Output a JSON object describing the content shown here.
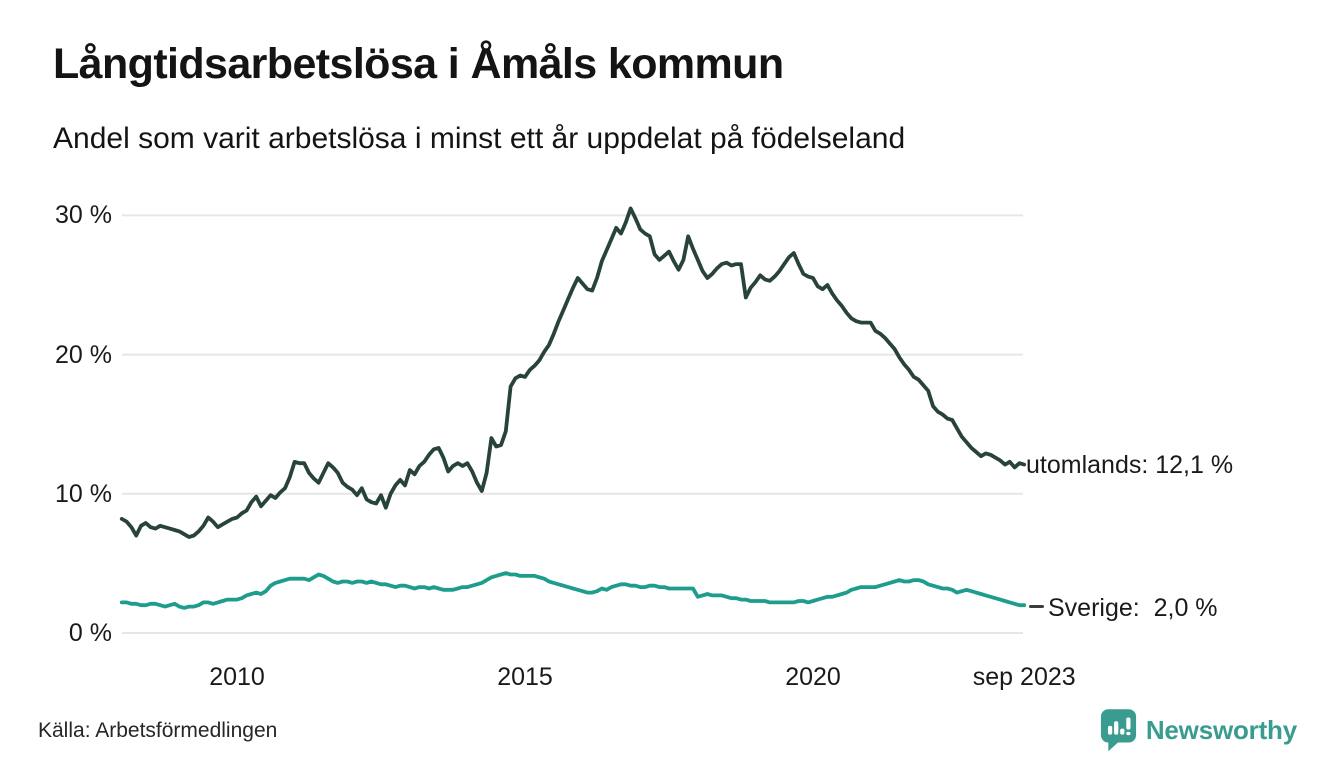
{
  "header": {
    "title": "Långtidsarbetslösa i Åmåls kommun",
    "subtitle": "Andel som varit arbetslösa i minst ett år uppdelat på födelseland"
  },
  "chart_data": {
    "type": "line",
    "title": "Långtidsarbetslösa i Åmåls kommun",
    "subtitle": "Andel som varit arbetslösa i minst ett år uppdelat på födelseland",
    "unit": "%",
    "x_start": "2008-01",
    "x_end": "2023-09",
    "x_interval": "monthly",
    "grid": "horizontal-only",
    "legend_position": "end-of-line-labels",
    "ylim": [
      0,
      31.5
    ],
    "y_axis": {
      "ticks": [
        {
          "value": 0,
          "label": "0 %"
        },
        {
          "value": 10,
          "label": "10 %"
        },
        {
          "value": 20,
          "label": "20 %"
        },
        {
          "value": 30,
          "label": "30 %"
        }
      ]
    },
    "x_axis": {
      "ticks": [
        {
          "pos": 2010,
          "label": "2010"
        },
        {
          "pos": 2015,
          "label": "2015"
        },
        {
          "pos": 2020,
          "label": "2020"
        },
        {
          "pos": 2023.667,
          "label": "sep 2023"
        }
      ]
    },
    "series": [
      {
        "name": "utomlands",
        "color": "#28433b",
        "end_label": "utomlands: 12,1 %",
        "end_value": "12,1 %",
        "values": [
          8.2,
          8.0,
          7.6,
          7.0,
          7.7,
          7.9,
          7.6,
          7.5,
          7.7,
          7.6,
          7.5,
          7.4,
          7.3,
          7.1,
          6.9,
          7.0,
          7.3,
          7.7,
          8.3,
          8.0,
          7.6,
          7.8,
          8.0,
          8.2,
          8.3,
          8.6,
          8.8,
          9.4,
          9.8,
          9.1,
          9.5,
          9.9,
          9.7,
          10.1,
          10.4,
          11.2,
          12.3,
          12.2,
          12.2,
          11.5,
          11.1,
          10.8,
          11.5,
          12.2,
          11.9,
          11.5,
          10.8,
          10.5,
          10.3,
          9.9,
          10.4,
          9.6,
          9.4,
          9.3,
          9.9,
          9.0,
          10.0,
          10.6,
          11.0,
          10.6,
          11.7,
          11.4,
          12.0,
          12.3,
          12.8,
          13.2,
          13.3,
          12.6,
          11.6,
          12.0,
          12.2,
          12.0,
          12.2,
          11.6,
          10.8,
          10.2,
          11.5,
          14.0,
          13.4,
          13.5,
          14.5,
          17.7,
          18.3,
          18.5,
          18.4,
          18.9,
          19.2,
          19.6,
          20.2,
          20.7,
          21.5,
          22.4,
          23.2,
          24.0,
          24.8,
          25.5,
          25.1,
          24.7,
          24.6,
          25.5,
          26.7,
          27.5,
          28.3,
          29.1,
          28.7,
          29.5,
          30.5,
          29.8,
          29.0,
          28.7,
          28.5,
          27.2,
          26.8,
          27.1,
          27.4,
          26.7,
          26.1,
          26.8,
          28.5,
          27.6,
          26.8,
          26.0,
          25.5,
          25.8,
          26.2,
          26.5,
          26.6,
          26.4,
          26.5,
          26.5,
          24.1,
          24.8,
          25.2,
          25.7,
          25.4,
          25.3,
          25.6,
          26.0,
          26.5,
          27.0,
          27.3,
          26.5,
          25.8,
          25.6,
          25.5,
          24.9,
          24.7,
          25.0,
          24.4,
          23.9,
          23.5,
          23.0,
          22.6,
          22.4,
          22.3,
          22.3,
          22.3,
          21.7,
          21.5,
          21.2,
          20.8,
          20.4,
          19.8,
          19.3,
          18.9,
          18.4,
          18.2,
          17.8,
          17.4,
          16.3,
          15.9,
          15.7,
          15.4,
          15.3,
          14.7,
          14.1,
          13.7,
          13.3,
          13.0,
          12.7,
          12.9,
          12.8,
          12.6,
          12.4,
          12.1,
          12.3,
          11.9,
          12.2,
          12.1
        ]
      },
      {
        "name": "Sverige",
        "color": "#1f9d8c",
        "end_label": "Sverige:  2,0 %",
        "end_value": "2,0 %",
        "values": [
          2.2,
          2.2,
          2.1,
          2.1,
          2.0,
          2.0,
          2.1,
          2.1,
          2.0,
          1.9,
          2.0,
          2.1,
          1.9,
          1.8,
          1.9,
          1.9,
          2.0,
          2.2,
          2.2,
          2.1,
          2.2,
          2.3,
          2.4,
          2.4,
          2.4,
          2.5,
          2.7,
          2.8,
          2.9,
          2.8,
          3.0,
          3.4,
          3.6,
          3.7,
          3.8,
          3.9,
          3.9,
          3.9,
          3.9,
          3.8,
          4.0,
          4.2,
          4.1,
          3.9,
          3.7,
          3.6,
          3.7,
          3.7,
          3.6,
          3.7,
          3.7,
          3.6,
          3.7,
          3.6,
          3.5,
          3.5,
          3.4,
          3.3,
          3.4,
          3.4,
          3.3,
          3.2,
          3.3,
          3.3,
          3.2,
          3.3,
          3.2,
          3.1,
          3.1,
          3.1,
          3.2,
          3.3,
          3.3,
          3.4,
          3.5,
          3.6,
          3.8,
          4.0,
          4.1,
          4.2,
          4.3,
          4.2,
          4.2,
          4.1,
          4.1,
          4.1,
          4.1,
          4.0,
          3.9,
          3.7,
          3.6,
          3.5,
          3.4,
          3.3,
          3.2,
          3.1,
          3.0,
          2.9,
          2.9,
          3.0,
          3.2,
          3.1,
          3.3,
          3.4,
          3.5,
          3.5,
          3.4,
          3.4,
          3.3,
          3.3,
          3.4,
          3.4,
          3.3,
          3.3,
          3.2,
          3.2,
          3.2,
          3.2,
          3.2,
          3.2,
          2.6,
          2.7,
          2.8,
          2.7,
          2.7,
          2.7,
          2.6,
          2.5,
          2.5,
          2.4,
          2.4,
          2.3,
          2.3,
          2.3,
          2.3,
          2.2,
          2.2,
          2.2,
          2.2,
          2.2,
          2.2,
          2.3,
          2.3,
          2.2,
          2.3,
          2.4,
          2.5,
          2.6,
          2.6,
          2.7,
          2.8,
          2.9,
          3.1,
          3.2,
          3.3,
          3.3,
          3.3,
          3.3,
          3.4,
          3.5,
          3.6,
          3.7,
          3.8,
          3.7,
          3.7,
          3.8,
          3.8,
          3.7,
          3.5,
          3.4,
          3.3,
          3.2,
          3.2,
          3.1,
          2.9,
          3.0,
          3.1,
          3.0,
          2.9,
          2.8,
          2.7,
          2.6,
          2.5,
          2.4,
          2.3,
          2.2,
          2.1,
          2.0,
          2.0
        ]
      }
    ],
    "gridline_color": "#e6e6e6"
  },
  "footer": {
    "source": "Källa: Arbetsförmedlingen",
    "brand": "Newsworthy",
    "brand_color": "#3a9c90"
  }
}
